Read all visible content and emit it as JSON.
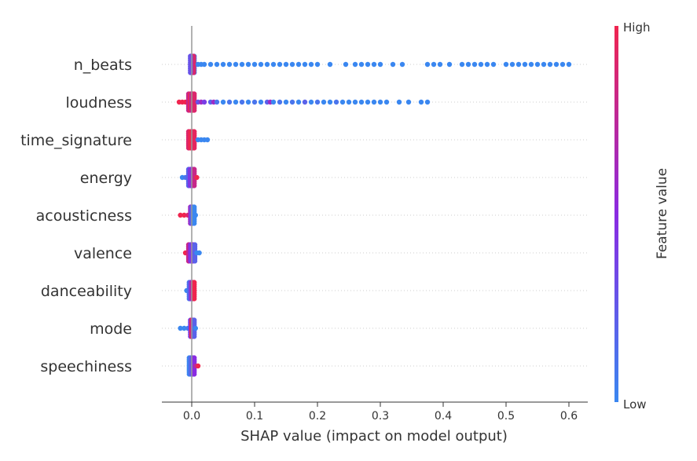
{
  "chart_data": {
    "type": "scatter",
    "subtype": "shap-beeswarm",
    "title": "",
    "xlabel": "SHAP value (impact on model output)",
    "ylabel": "",
    "xlim": [
      -0.045,
      0.63
    ],
    "xticks": [
      0.0,
      0.1,
      0.2,
      0.3,
      0.4,
      0.5,
      0.6
    ],
    "xtick_labels": [
      "0.0",
      "0.1",
      "0.2",
      "0.3",
      "0.4",
      "0.5",
      "0.6"
    ],
    "features": [
      "n_beats",
      "loudness",
      "time_signature",
      "energy",
      "acousticness",
      "valence",
      "danceability",
      "mode",
      "speechiness"
    ],
    "colorbar": {
      "label": "Feature value",
      "high_label": "High",
      "low_label": "Low",
      "low_color": "#3a87f0",
      "mid_color": "#8a2be2",
      "high_color": "#f0254f"
    },
    "series": [
      {
        "feature": "n_beats",
        "points": [
          [
            -0.002,
            0.0
          ],
          [
            0.0,
            0.0
          ],
          [
            0.002,
            0.0
          ],
          [
            0.004,
            0.0
          ],
          [
            -0.001,
            0.2
          ],
          [
            0.001,
            0.6
          ],
          [
            0.003,
            0.9
          ],
          [
            -0.002,
            0.3
          ],
          [
            0.01,
            0.0
          ],
          [
            0.015,
            0.0
          ],
          [
            0.02,
            0.0
          ],
          [
            0.03,
            0.0
          ],
          [
            0.04,
            0.0
          ],
          [
            0.05,
            0.0
          ],
          [
            0.06,
            0.0
          ],
          [
            0.07,
            0.0
          ],
          [
            0.08,
            0.0
          ],
          [
            0.09,
            0.0
          ],
          [
            0.1,
            0.0
          ],
          [
            0.11,
            0.0
          ],
          [
            0.12,
            0.0
          ],
          [
            0.13,
            0.0
          ],
          [
            0.14,
            0.0
          ],
          [
            0.15,
            0.0
          ],
          [
            0.16,
            0.0
          ],
          [
            0.17,
            0.0
          ],
          [
            0.18,
            0.0
          ],
          [
            0.19,
            0.0
          ],
          [
            0.2,
            0.0
          ],
          [
            0.22,
            0.0
          ],
          [
            0.245,
            0.0
          ],
          [
            0.26,
            0.0
          ],
          [
            0.27,
            0.0
          ],
          [
            0.28,
            0.0
          ],
          [
            0.29,
            0.0
          ],
          [
            0.3,
            0.0
          ],
          [
            0.32,
            0.0
          ],
          [
            0.335,
            0.0
          ],
          [
            0.375,
            0.0
          ],
          [
            0.385,
            0.0
          ],
          [
            0.395,
            0.0
          ],
          [
            0.41,
            0.0
          ],
          [
            0.43,
            0.0
          ],
          [
            0.44,
            0.0
          ],
          [
            0.45,
            0.0
          ],
          [
            0.46,
            0.0
          ],
          [
            0.47,
            0.0
          ],
          [
            0.48,
            0.0
          ],
          [
            0.5,
            0.0
          ],
          [
            0.51,
            0.0
          ],
          [
            0.52,
            0.0
          ],
          [
            0.53,
            0.0
          ],
          [
            0.54,
            0.0
          ],
          [
            0.55,
            0.0
          ],
          [
            0.56,
            0.0
          ],
          [
            0.57,
            0.0
          ],
          [
            0.58,
            0.0
          ],
          [
            0.59,
            0.0
          ],
          [
            0.6,
            0.0
          ]
        ]
      },
      {
        "feature": "loudness",
        "points": [
          [
            -0.02,
            1.0
          ],
          [
            -0.015,
            1.0
          ],
          [
            -0.01,
            1.0
          ],
          [
            -0.005,
            0.8
          ],
          [
            -0.002,
            1.0
          ],
          [
            0.0,
            0.7
          ],
          [
            0.002,
            1.0
          ],
          [
            0.004,
            0.9
          ],
          [
            0.01,
            0.3
          ],
          [
            0.015,
            0.6
          ],
          [
            0.02,
            0.4
          ],
          [
            0.03,
            0.2
          ],
          [
            0.035,
            0.6
          ],
          [
            0.04,
            0.1
          ],
          [
            0.05,
            0.0
          ],
          [
            0.06,
            0.1
          ],
          [
            0.07,
            0.0
          ],
          [
            0.08,
            0.1
          ],
          [
            0.09,
            0.0
          ],
          [
            0.1,
            0.1
          ],
          [
            0.11,
            0.0
          ],
          [
            0.12,
            0.2
          ],
          [
            0.125,
            0.6
          ],
          [
            0.13,
            0.0
          ],
          [
            0.14,
            0.1
          ],
          [
            0.15,
            0.0
          ],
          [
            0.16,
            0.1
          ],
          [
            0.17,
            0.0
          ],
          [
            0.18,
            0.2
          ],
          [
            0.19,
            0.0
          ],
          [
            0.2,
            0.1
          ],
          [
            0.21,
            0.0
          ],
          [
            0.22,
            0.0
          ],
          [
            0.23,
            0.1
          ],
          [
            0.24,
            0.0
          ],
          [
            0.25,
            0.0
          ],
          [
            0.26,
            0.0
          ],
          [
            0.27,
            0.0
          ],
          [
            0.28,
            0.0
          ],
          [
            0.29,
            0.0
          ],
          [
            0.3,
            0.0
          ],
          [
            0.31,
            0.0
          ],
          [
            0.33,
            0.0
          ],
          [
            0.345,
            0.0
          ],
          [
            0.365,
            0.0
          ],
          [
            0.375,
            0.0
          ]
        ]
      },
      {
        "feature": "time_signature",
        "points": [
          [
            -0.005,
            0.9
          ],
          [
            -0.002,
            1.0
          ],
          [
            0.0,
            1.0
          ],
          [
            0.002,
            1.0
          ],
          [
            0.004,
            0.95
          ],
          [
            0.01,
            0.0
          ],
          [
            0.015,
            0.0
          ],
          [
            0.02,
            0.0
          ],
          [
            0.025,
            0.0
          ]
        ]
      },
      {
        "feature": "energy",
        "points": [
          [
            -0.015,
            0.0
          ],
          [
            -0.01,
            0.1
          ],
          [
            -0.005,
            0.2
          ],
          [
            -0.002,
            0.5
          ],
          [
            0.0,
            0.4
          ],
          [
            0.002,
            0.6
          ],
          [
            0.004,
            0.8
          ],
          [
            0.008,
            1.0
          ]
        ]
      },
      {
        "feature": "acousticness",
        "points": [
          [
            -0.018,
            1.0
          ],
          [
            -0.012,
            1.0
          ],
          [
            -0.006,
            0.9
          ],
          [
            -0.002,
            0.6
          ],
          [
            0.0,
            0.3
          ],
          [
            0.002,
            0.1
          ],
          [
            0.004,
            0.0
          ],
          [
            0.006,
            0.0
          ]
        ]
      },
      {
        "feature": "valence",
        "points": [
          [
            -0.01,
            1.0
          ],
          [
            -0.005,
            0.8
          ],
          [
            -0.002,
            0.5
          ],
          [
            0.0,
            0.4
          ],
          [
            0.002,
            0.5
          ],
          [
            0.005,
            0.2
          ],
          [
            0.008,
            0.0
          ],
          [
            0.012,
            0.0
          ]
        ]
      },
      {
        "feature": "danceability",
        "points": [
          [
            -0.008,
            0.0
          ],
          [
            -0.004,
            0.1
          ],
          [
            -0.002,
            0.3
          ],
          [
            0.0,
            0.6
          ],
          [
            0.002,
            0.8
          ],
          [
            0.004,
            1.0
          ]
        ]
      },
      {
        "feature": "mode",
        "points": [
          [
            -0.018,
            0.0
          ],
          [
            -0.012,
            0.0
          ],
          [
            -0.006,
            0.05
          ],
          [
            -0.002,
            0.4
          ],
          [
            0.0,
            1.0
          ],
          [
            0.002,
            0.6
          ],
          [
            0.004,
            0.2
          ],
          [
            0.006,
            0.0
          ]
        ]
      },
      {
        "feature": "speechiness",
        "points": [
          [
            -0.004,
            0.0
          ],
          [
            -0.002,
            0.1
          ],
          [
            0.0,
            0.2
          ],
          [
            0.002,
            0.3
          ],
          [
            0.004,
            0.5
          ],
          [
            0.006,
            0.7
          ],
          [
            0.01,
            1.0
          ]
        ]
      }
    ]
  }
}
